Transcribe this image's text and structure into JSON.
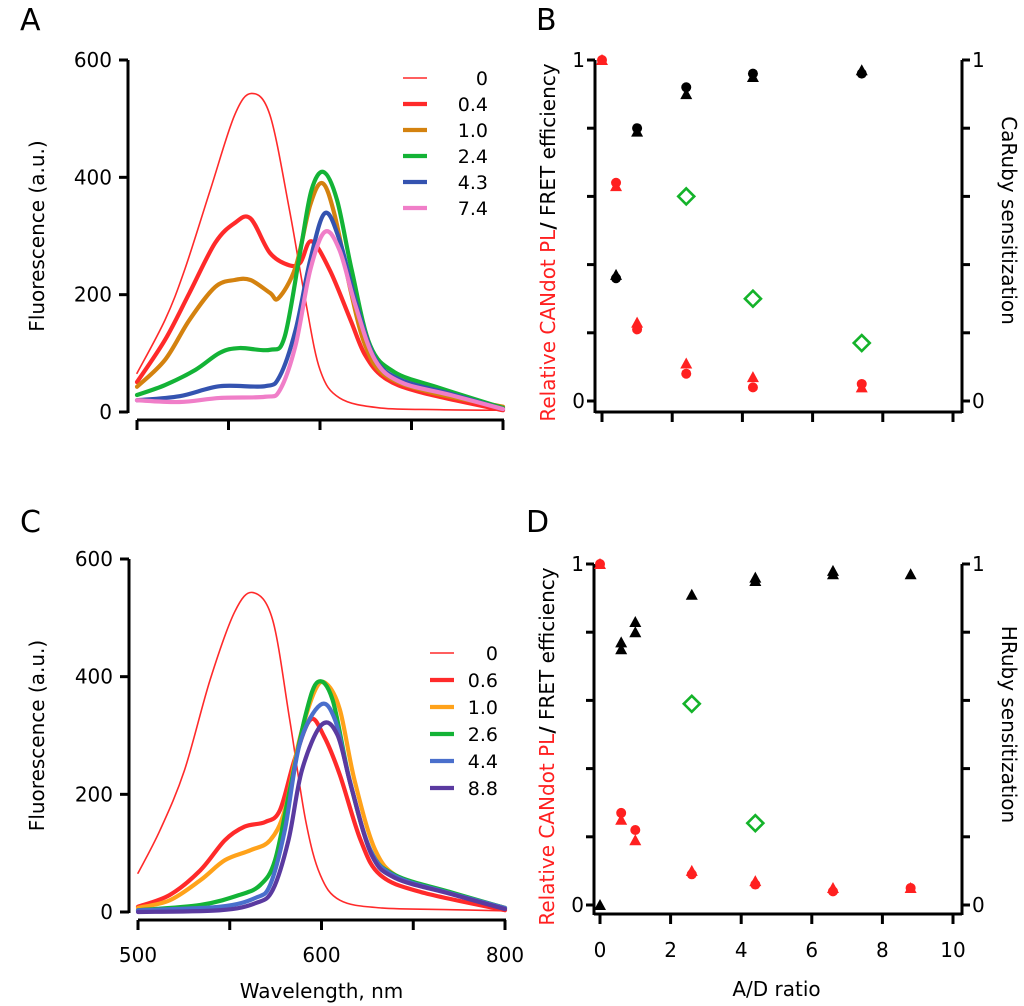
{
  "figure": {
    "panels": [
      "A",
      "B",
      "C",
      "D"
    ]
  },
  "chart_data": [
    {
      "panel": "A",
      "type": "line",
      "title": "",
      "xlabel": "",
      "ylabel": "Fluorescence (a.u.)",
      "xlim": [
        500,
        800
      ],
      "ylim": [
        0,
        600
      ],
      "yticks": [
        "0",
        "200",
        "400",
        "600"
      ],
      "ytick_values": [
        0,
        200,
        400,
        600
      ],
      "xticks": [
        "",
        "",
        "",
        "",
        ""
      ],
      "xtick_values": [
        500,
        575,
        650,
        725,
        800
      ],
      "legend_position": "top-right",
      "series": [
        {
          "name": "0",
          "color": "#ff2a2a",
          "weight": "thin",
          "x": [
            500,
            523,
            539,
            560,
            580,
            594,
            609,
            625,
            638,
            650,
            666,
            699,
            748,
            800
          ],
          "y": [
            66,
            157,
            242,
            378,
            506,
            543,
            506,
            344,
            191,
            72,
            24,
            7,
            4,
            3
          ]
        },
        {
          "name": "0.4",
          "color": "#ff2a2a",
          "weight": "thick",
          "x": [
            500,
            523,
            543,
            564,
            580,
            593,
            609,
            625,
            634,
            643,
            658,
            675,
            687,
            703,
            732,
            800
          ],
          "y": [
            51,
            123,
            203,
            288,
            322,
            330,
            271,
            250,
            255,
            291,
            242,
            157,
            97,
            58,
            34,
            3
          ]
        },
        {
          "name": "1.0",
          "color": "#d4820f",
          "weight": "thick",
          "x": [
            500,
            523,
            543,
            564,
            580,
            593,
            609,
            616,
            630,
            642,
            652,
            662,
            675,
            687,
            703,
            740,
            800
          ],
          "y": [
            43,
            89,
            157,
            213,
            225,
            225,
            203,
            194,
            247,
            353,
            390,
            336,
            208,
            114,
            63,
            34,
            9
          ]
        },
        {
          "name": "2.4",
          "color": "#13b336",
          "weight": "thick",
          "x": [
            500,
            523,
            548,
            568,
            584,
            609,
            621,
            634,
            643,
            653,
            664,
            676,
            691,
            711,
            748,
            800
          ],
          "y": [
            29,
            46,
            72,
            101,
            109,
            106,
            128,
            276,
            378,
            409,
            361,
            242,
            114,
            68,
            41,
            7
          ]
        },
        {
          "name": "4.3",
          "color": "#3453b0",
          "weight": "thick",
          "x": [
            500,
            535,
            568,
            605,
            617,
            630,
            642,
            654,
            666,
            679,
            695,
            716,
            757,
            800
          ],
          "y": [
            20,
            27,
            44,
            44,
            61,
            140,
            259,
            339,
            293,
            191,
            92,
            55,
            31,
            5
          ]
        },
        {
          "name": "7.4",
          "color": "#f07ec8",
          "weight": "thick",
          "x": [
            500,
            535,
            568,
            605,
            617,
            630,
            642,
            654,
            666,
            679,
            695,
            716,
            757,
            800
          ],
          "y": [
            20,
            17,
            24,
            26,
            37,
            114,
            242,
            307,
            276,
            182,
            89,
            51,
            29,
            5
          ]
        }
      ]
    },
    {
      "panel": "B",
      "type": "scatter",
      "title": "",
      "xlabel": "",
      "ylabel_left_parts": [
        {
          "text": "Relative CANdot PL",
          "color": "#ff2020"
        },
        {
          "text": "/",
          "color": "#000000"
        },
        {
          "text": " FRET efficiency",
          "color": "#000000"
        }
      ],
      "ylabel_right": "CaRuby sensitization",
      "ylabel_right_color": "#14b32a",
      "xlim": [
        0,
        10
      ],
      "ylim": [
        0,
        1
      ],
      "ylim_right": [
        0,
        1
      ],
      "yticks_left": [
        "0",
        "",
        "",
        "",
        "",
        "1"
      ],
      "yticks_right": [
        "0",
        "",
        "",
        "",
        "",
        "1"
      ],
      "ytick_values": [
        0,
        0.2,
        0.4,
        0.6,
        0.8,
        1.0
      ],
      "xticks": [
        "",
        "",
        "",
        "",
        "",
        ""
      ],
      "xtick_values": [
        0,
        2,
        4,
        6,
        8,
        10
      ],
      "series": [
        {
          "name": "Relative CANdot PL (circles)",
          "color": "#ff2020",
          "marker": "circle",
          "x": [
            0,
            0.4,
            1.0,
            2.4,
            4.3,
            7.4
          ],
          "y": [
            1.0,
            0.64,
            0.21,
            0.08,
            0.04,
            0.05
          ]
        },
        {
          "name": "Relative CANdot PL (triangles)",
          "color": "#ff2020",
          "marker": "triangle",
          "x": [
            0,
            0.4,
            1.0,
            2.4,
            4.3,
            7.4
          ],
          "y": [
            1.0,
            0.63,
            0.23,
            0.11,
            0.07,
            0.04
          ]
        },
        {
          "name": "FRET efficiency (circles)",
          "color": "#000000",
          "marker": "circle",
          "x": [
            0.4,
            1.0,
            2.4,
            4.3,
            7.4
          ],
          "y": [
            0.36,
            0.8,
            0.92,
            0.96,
            0.96
          ]
        },
        {
          "name": "FRET efficiency (triangles)",
          "color": "#000000",
          "marker": "triangle",
          "x": [
            0.4,
            1.0,
            2.4,
            4.3,
            7.4
          ],
          "y": [
            0.37,
            0.79,
            0.9,
            0.95,
            0.97
          ]
        },
        {
          "name": "CaRuby sensitization",
          "color": "#14b32a",
          "marker": "diamond-open",
          "axis": "right",
          "x": [
            2.4,
            4.3,
            7.4
          ],
          "y": [
            0.6,
            0.3,
            0.17
          ]
        }
      ]
    },
    {
      "panel": "C",
      "type": "line",
      "title": "",
      "xlabel": "Wavelength, nm",
      "ylabel": "Fluorescence (a.u.)",
      "xlim": [
        500,
        800
      ],
      "ylim": [
        0,
        600
      ],
      "yticks": [
        "0",
        "200",
        "400",
        "600"
      ],
      "ytick_values": [
        0,
        200,
        400,
        600
      ],
      "xticks": [
        "500",
        "",
        "600",
        "",
        "800"
      ],
      "xtick_values": [
        500,
        575,
        650,
        725,
        800
      ],
      "legend_position": "right",
      "series": [
        {
          "name": "0",
          "color": "#ff2a2a",
          "weight": "thin",
          "x": [
            500,
            518,
            538,
            559,
            579,
            594,
            610,
            624,
            637,
            649,
            665,
            698,
            755,
            800
          ],
          "y": [
            66,
            139,
            241,
            395,
            510,
            543,
            497,
            327,
            156,
            63,
            20,
            7,
            4,
            2
          ]
        },
        {
          "name": "0.6",
          "color": "#ff2a2a",
          "weight": "thick",
          "x": [
            500,
            526,
            551,
            571,
            587,
            604,
            616,
            628,
            641,
            652,
            665,
            682,
            698,
            731,
            800
          ],
          "y": [
            9,
            29,
            71,
            122,
            145,
            153,
            173,
            259,
            327,
            299,
            233,
            122,
            63,
            34,
            3
          ]
        },
        {
          "name": "1.0",
          "color": "#ffa21a",
          "weight": "thick",
          "x": [
            500,
            526,
            551,
            571,
            592,
            608,
            620,
            632,
            645,
            654,
            665,
            677,
            694,
            714,
            755,
            800
          ],
          "y": [
            7,
            20,
            54,
            88,
            105,
            122,
            173,
            293,
            378,
            388,
            344,
            224,
            105,
            58,
            32,
            7
          ]
        },
        {
          "name": "2.6",
          "color": "#13b336",
          "weight": "thick",
          "x": [
            500,
            551,
            583,
            600,
            612,
            624,
            637,
            647,
            659,
            673,
            690,
            710,
            755,
            800
          ],
          "y": [
            3,
            12,
            29,
            46,
            88,
            207,
            335,
            391,
            361,
            224,
            105,
            63,
            34,
            7
          ]
        },
        {
          "name": "4.4",
          "color": "#4a6fcc",
          "weight": "thick",
          "x": [
            500,
            567,
            596,
            608,
            620,
            632,
            649,
            661,
            673,
            690,
            710,
            755,
            800
          ],
          "y": [
            3,
            9,
            24,
            46,
            139,
            284,
            352,
            327,
            224,
            105,
            61,
            32,
            7
          ]
        },
        {
          "name": "8.8",
          "color": "#5a3aa0",
          "weight": "thick",
          "x": [
            500,
            567,
            596,
            610,
            623,
            634,
            650,
            663,
            675,
            691,
            710,
            755,
            800
          ],
          "y": [
            0,
            3,
            15,
            37,
            122,
            241,
            318,
            301,
            207,
            97,
            58,
            31,
            5
          ]
        }
      ]
    },
    {
      "panel": "D",
      "type": "scatter",
      "title": "",
      "xlabel": "A/D ratio",
      "ylabel_left_parts": [
        {
          "text": "Relative CANdot PL",
          "color": "#ff2020"
        },
        {
          "text": "/",
          "color": "#000000"
        },
        {
          "text": " FRET efficiency",
          "color": "#000000"
        }
      ],
      "ylabel_right": "HRuby sensitization",
      "ylabel_right_color": "#14b32a",
      "xlim": [
        0,
        10
      ],
      "ylim": [
        0,
        1
      ],
      "ylim_right": [
        0,
        1
      ],
      "yticks_left": [
        "0",
        "",
        "",
        "",
        "",
        "1"
      ],
      "yticks_right": [
        "0",
        "",
        "",
        "",
        "",
        "1"
      ],
      "ytick_values": [
        0,
        0.2,
        0.4,
        0.6,
        0.8,
        1.0
      ],
      "xticks": [
        "0",
        "2",
        "4",
        "6",
        "8",
        "10"
      ],
      "xtick_values": [
        0,
        2,
        4,
        6,
        8,
        10
      ],
      "series": [
        {
          "name": "Relative CANdot PL (circles)",
          "color": "#ff2020",
          "marker": "circle",
          "x": [
            0,
            0.6,
            1.0,
            2.6,
            4.4,
            6.6,
            8.8
          ],
          "y": [
            1.0,
            0.27,
            0.22,
            0.09,
            0.06,
            0.04,
            0.05
          ]
        },
        {
          "name": "Relative CANdot PL (triangles)",
          "color": "#ff2020",
          "marker": "triangle",
          "x": [
            0,
            0.6,
            1.0,
            2.6,
            4.4,
            6.6,
            8.8
          ],
          "y": [
            1.0,
            0.25,
            0.19,
            0.1,
            0.07,
            0.05,
            0.05
          ]
        },
        {
          "name": "FRET efficiency (triangles a)",
          "color": "#000000",
          "marker": "triangle",
          "x": [
            0,
            0.6,
            1.0,
            2.6,
            4.4,
            6.6,
            8.8
          ],
          "y": [
            0.0,
            0.75,
            0.8,
            0.91,
            0.95,
            0.97,
            0.97
          ]
        },
        {
          "name": "FRET efficiency (triangles b)",
          "color": "#000000",
          "marker": "triangle",
          "x": [
            0.6,
            1.0,
            4.4,
            6.6
          ],
          "y": [
            0.77,
            0.83,
            0.96,
            0.98
          ]
        },
        {
          "name": "HRuby sensitization",
          "color": "#14b32a",
          "marker": "diamond-open",
          "axis": "right",
          "x": [
            2.6,
            4.4
          ],
          "y": [
            0.59,
            0.24
          ]
        }
      ]
    }
  ]
}
